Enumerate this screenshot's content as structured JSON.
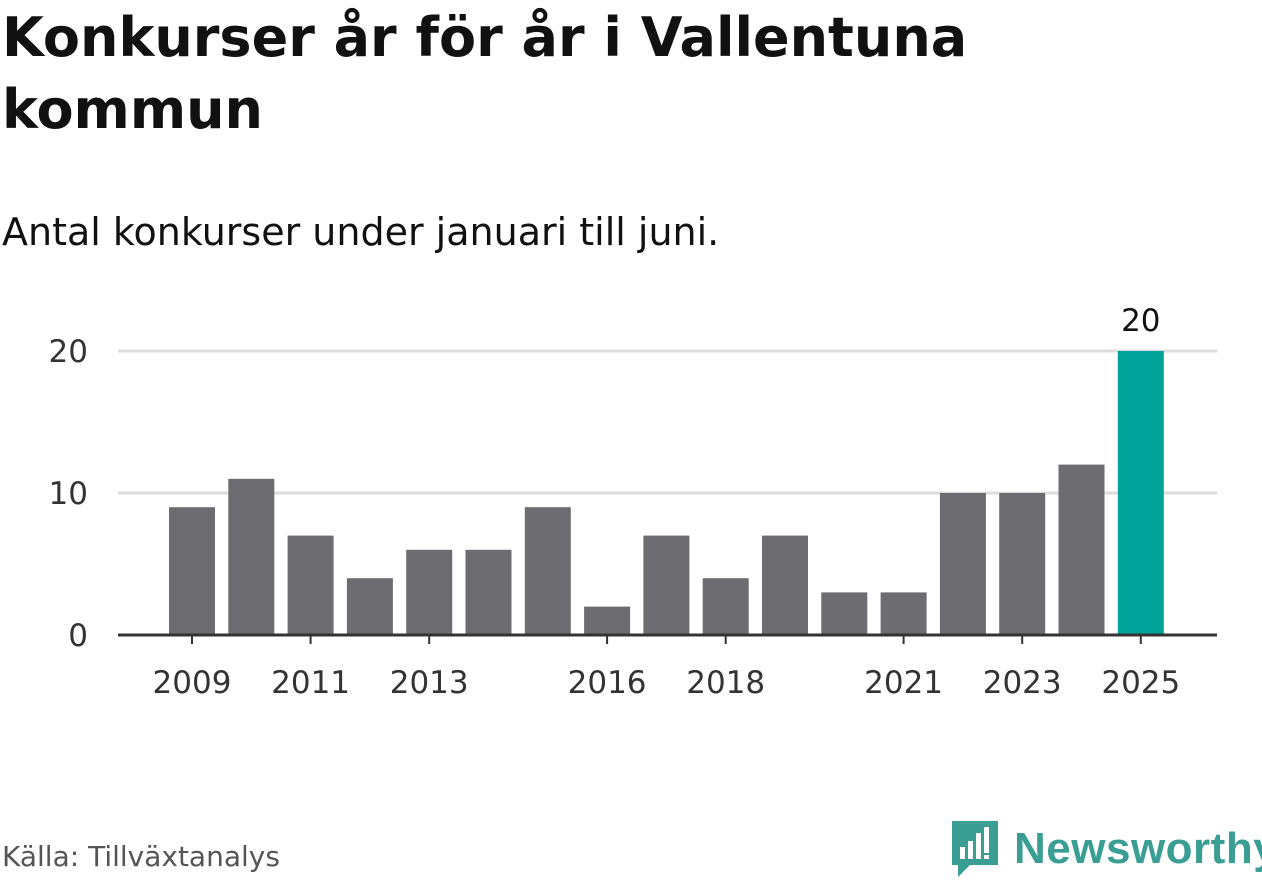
{
  "title": "Konkurser år för år i Vallentuna kommun",
  "subtitle": "Antal konkurser under januari till juni.",
  "source": "Källa: Tillväxtanalys",
  "brand": {
    "name": "Newsworthy",
    "icon": "newsworthy-logo-icon",
    "color": "#3b9e95"
  },
  "chart_data": {
    "type": "bar",
    "categories": [
      "2009",
      "2010",
      "2011",
      "2012",
      "2013",
      "2014",
      "2015",
      "2016",
      "2017",
      "2018",
      "2019",
      "2020",
      "2021",
      "2022",
      "2023",
      "2024",
      "2025"
    ],
    "values": [
      9,
      11,
      7,
      4,
      6,
      6,
      9,
      2,
      7,
      4,
      7,
      3,
      3,
      10,
      10,
      12,
      20
    ],
    "x_tick_labels": [
      "2009",
      "2011",
      "2013",
      "2016",
      "2018",
      "2021",
      "2023",
      "2025"
    ],
    "y_ticks": [
      0,
      10,
      20
    ],
    "ylim": [
      0,
      20
    ],
    "grid": true,
    "highlight_category": "2025",
    "highlight_label": "20",
    "colors": {
      "bar": "#6d6c71",
      "highlight": "#00a39a",
      "grid": "#dddddd",
      "axis": "#333333"
    },
    "xlabel": "",
    "ylabel": ""
  }
}
